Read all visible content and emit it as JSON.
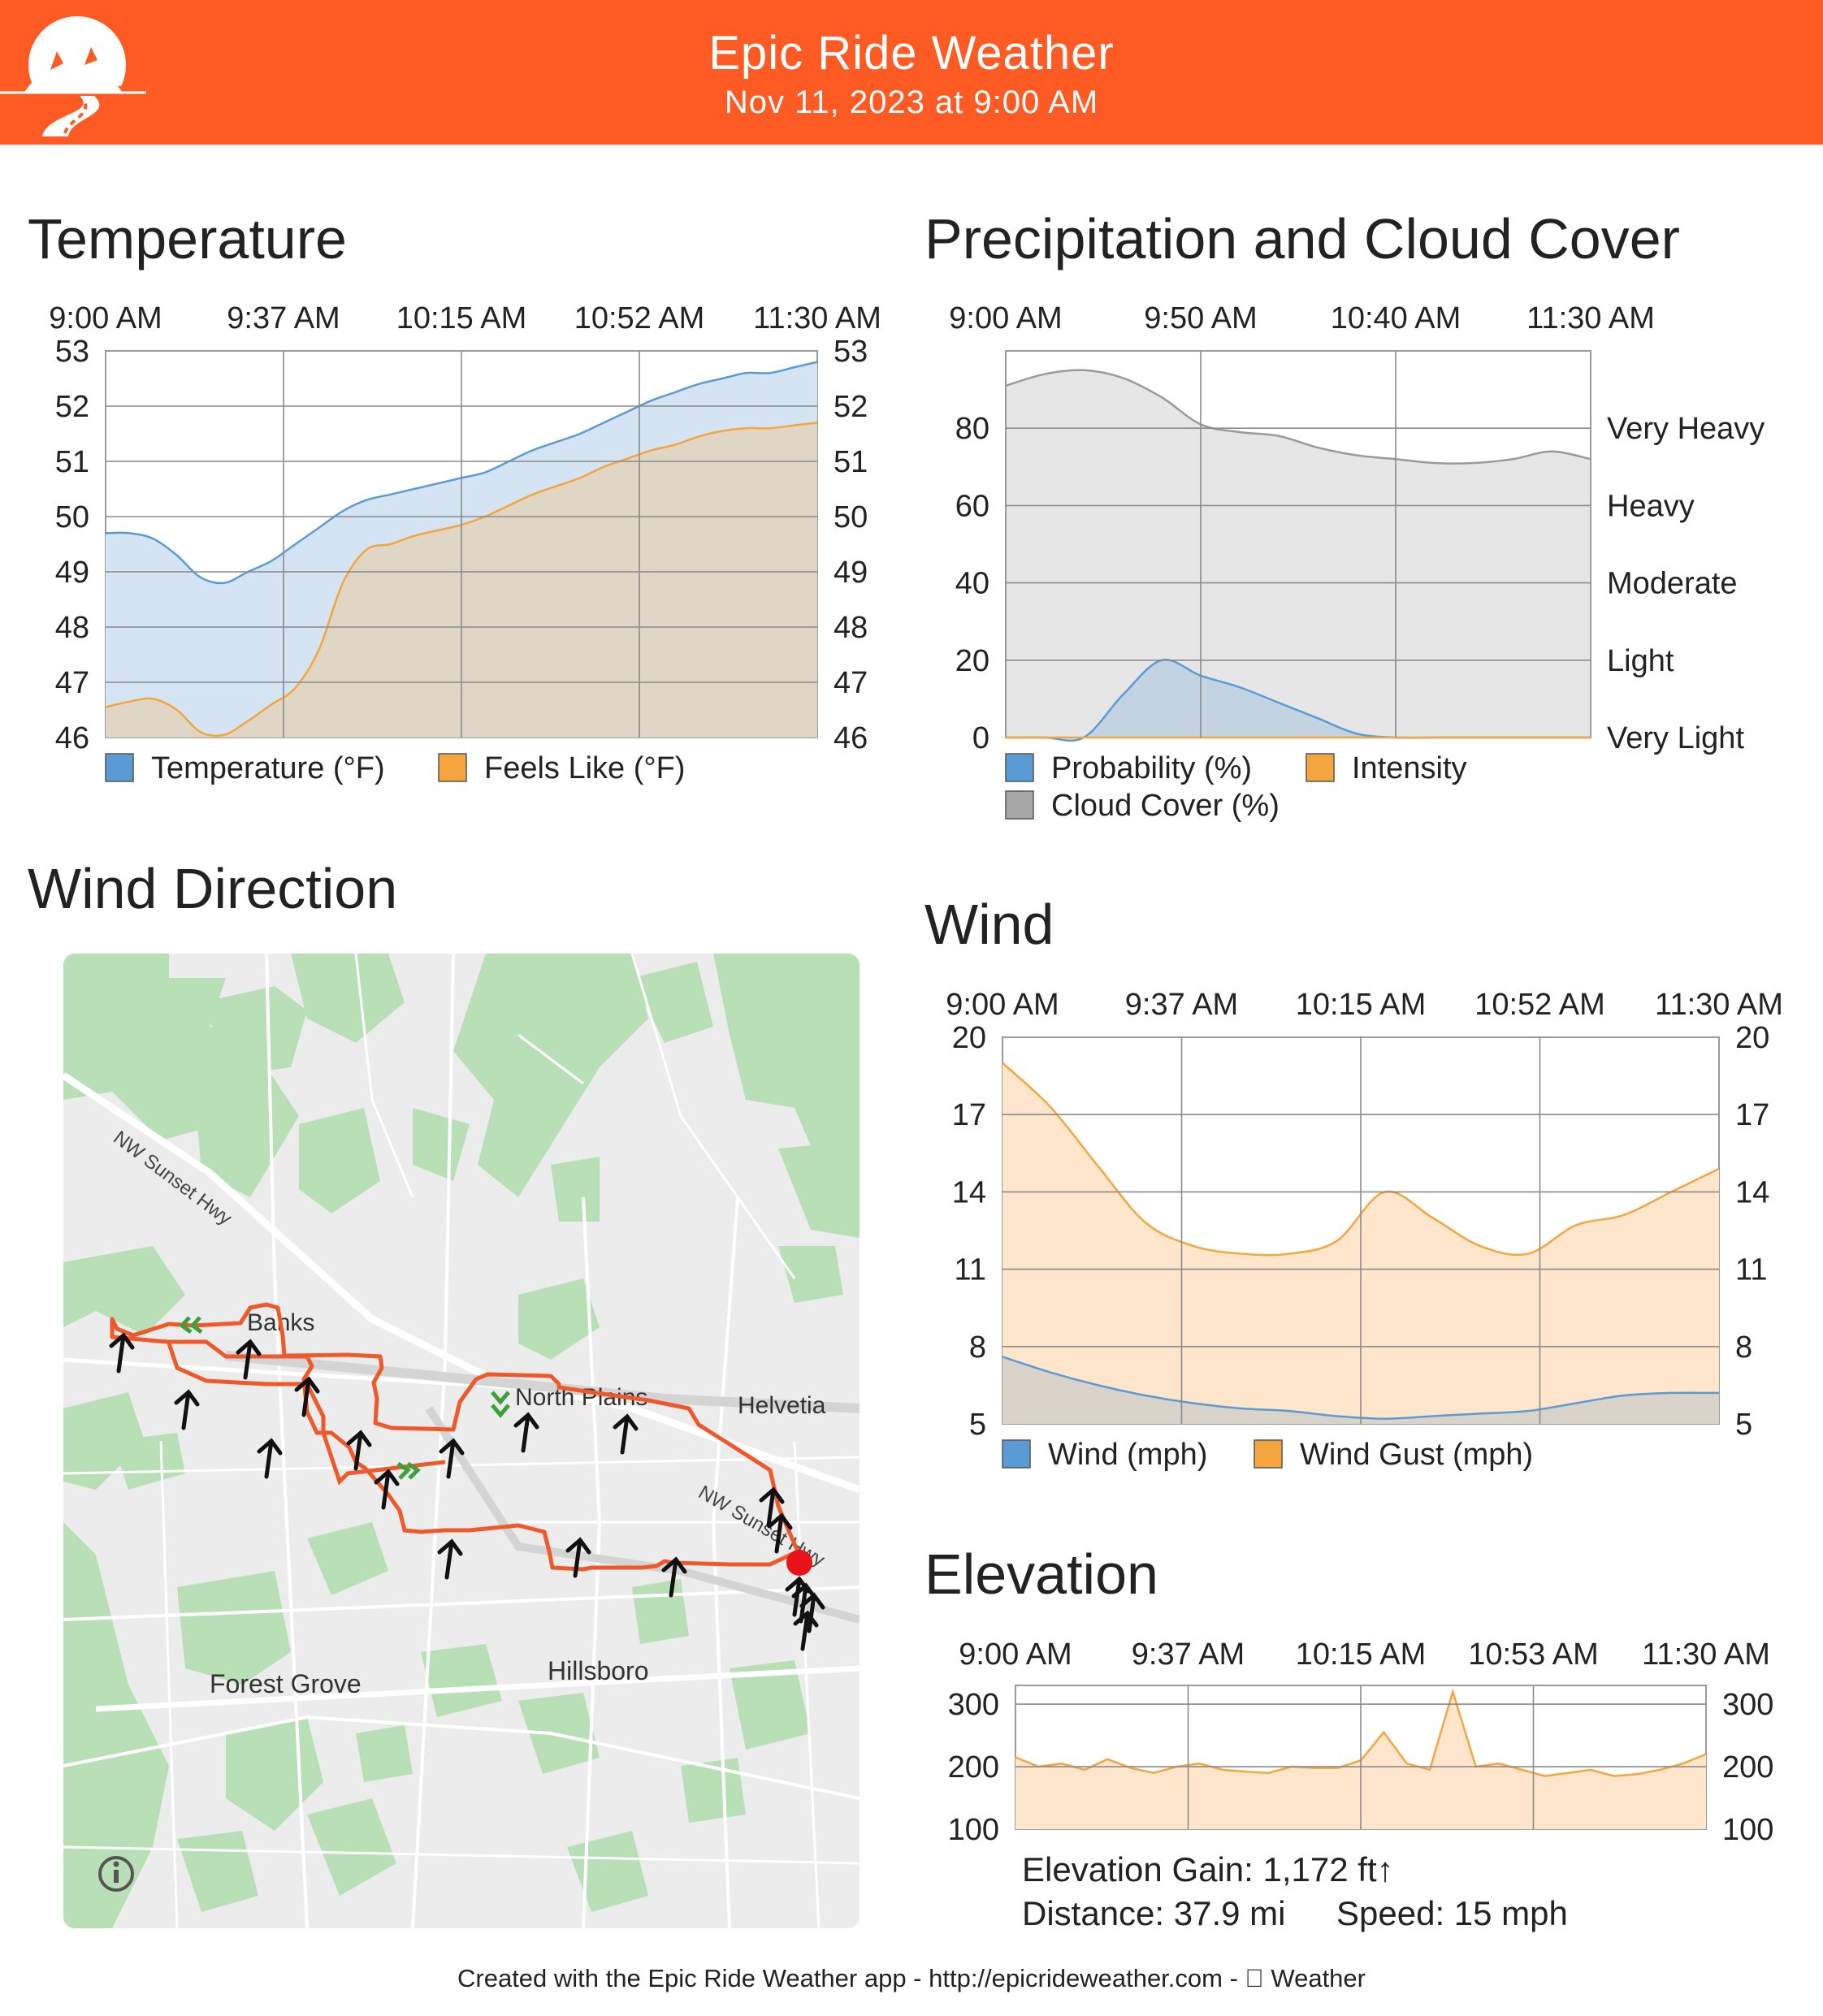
{
  "header": {
    "title": "Epic Ride Weather",
    "date": "Nov 11, 2023 at 9:00 AM",
    "background": "#fe5a24"
  },
  "sections": {
    "temperature": "Temperature",
    "precipitation": "Precipitation and Cloud Cover",
    "wind_direction": "Wind Direction",
    "wind": "Wind",
    "elevation": "Elevation"
  },
  "chart_data": [
    {
      "id": "temperature",
      "type": "area",
      "x_ticks": [
        "9:00 AM",
        "9:37 AM",
        "10:15 AM",
        "10:52 AM",
        "11:30 AM"
      ],
      "x": [
        0,
        5,
        10,
        15,
        20,
        25,
        30,
        35,
        40,
        45,
        50,
        55,
        60,
        65,
        70,
        75,
        80,
        85,
        90,
        95,
        100,
        105,
        110,
        115,
        120,
        125,
        130,
        135,
        140,
        145,
        150
      ],
      "ylim": [
        46,
        53
      ],
      "yticks": [
        46,
        47,
        48,
        49,
        50,
        51,
        52,
        53
      ],
      "grid": true,
      "legend_position": "bottom",
      "series": [
        {
          "name": "Temperature (°F)",
          "color": "#5b9bd5",
          "values": [
            49.7,
            49.7,
            49.6,
            49.3,
            48.9,
            48.8,
            49.0,
            49.2,
            49.5,
            49.8,
            50.1,
            50.3,
            50.4,
            50.5,
            50.6,
            50.7,
            50.8,
            51.0,
            51.2,
            51.35,
            51.5,
            51.7,
            51.9,
            52.1,
            52.25,
            52.4,
            52.5,
            52.6,
            52.6,
            52.7,
            52.8
          ]
        },
        {
          "name": "Feels Like (°F)",
          "color": "#f5a53d",
          "values": [
            46.55,
            46.65,
            46.7,
            46.5,
            46.1,
            46.05,
            46.3,
            46.6,
            46.9,
            47.6,
            48.8,
            49.4,
            49.5,
            49.65,
            49.75,
            49.85,
            50.0,
            50.2,
            50.4,
            50.55,
            50.7,
            50.9,
            51.05,
            51.2,
            51.3,
            51.45,
            51.55,
            51.6,
            51.6,
            51.65,
            51.7
          ]
        }
      ]
    },
    {
      "id": "precipitation",
      "type": "area",
      "x_ticks": [
        "9:00 AM",
        "9:50 AM",
        "10:40 AM",
        "11:30 AM"
      ],
      "x": [
        0,
        10,
        20,
        30,
        40,
        50,
        60,
        70,
        80,
        90,
        100,
        110,
        120,
        130,
        140,
        150
      ],
      "ylim": [
        0,
        100
      ],
      "yticks": [
        0,
        20,
        40,
        60,
        80
      ],
      "y2_labels": [
        "Very Light",
        "Light",
        "Moderate",
        "Heavy",
        "Very Heavy"
      ],
      "grid": true,
      "legend_position": "bottom",
      "series": [
        {
          "name": "Probability (%)",
          "color": "#5b9bd5",
          "values": [
            0,
            0,
            0,
            11,
            20,
            16,
            13,
            9,
            5,
            1,
            0,
            0,
            0,
            0,
            0,
            0
          ]
        },
        {
          "name": "Intensity",
          "color": "#f5a53d",
          "values": [
            0,
            0,
            0,
            0,
            0,
            0,
            0,
            0,
            0,
            0,
            0,
            0,
            0,
            0,
            0,
            0
          ]
        },
        {
          "name": "Cloud Cover (%)",
          "color": "#a6a6a6",
          "values": [
            91,
            94,
            95,
            93,
            88,
            81,
            79,
            78,
            75,
            73,
            72,
            71,
            71,
            72,
            74,
            72
          ]
        }
      ]
    },
    {
      "id": "wind",
      "type": "area",
      "x_ticks": [
        "9:00 AM",
        "9:37 AM",
        "10:15 AM",
        "10:52 AM",
        "11:30 AM"
      ],
      "x": [
        0,
        10,
        20,
        30,
        40,
        50,
        60,
        70,
        80,
        90,
        100,
        110,
        120,
        130,
        140,
        150
      ],
      "ylim": [
        5,
        20
      ],
      "yticks": [
        5,
        8,
        11,
        14,
        17,
        20
      ],
      "grid": true,
      "legend_position": "bottom",
      "series": [
        {
          "name": "Wind (mph)",
          "color": "#5b9bd5",
          "values": [
            7.6,
            7.0,
            6.5,
            6.1,
            5.8,
            5.6,
            5.5,
            5.3,
            5.2,
            5.3,
            5.4,
            5.5,
            5.8,
            6.1,
            6.2,
            6.2
          ]
        },
        {
          "name": "Wind Gust (mph)",
          "color": "#f5a53d",
          "values": [
            19.0,
            17.3,
            15.0,
            12.8,
            11.9,
            11.6,
            11.6,
            12.1,
            14.0,
            13.0,
            11.9,
            11.6,
            12.7,
            13.1,
            14.0,
            14.9
          ]
        }
      ]
    },
    {
      "id": "elevation",
      "type": "area",
      "x_ticks": [
        "9:00 AM",
        "9:37 AM",
        "10:15 AM",
        "10:53 AM",
        "11:30 AM"
      ],
      "x": [
        0,
        5,
        10,
        15,
        20,
        25,
        30,
        35,
        40,
        45,
        50,
        55,
        60,
        65,
        70,
        75,
        80,
        85,
        90,
        95,
        100,
        105,
        110,
        115,
        120,
        125,
        130,
        135,
        140,
        145,
        150
      ],
      "ylim": [
        100,
        330
      ],
      "yticks": [
        100,
        200,
        300
      ],
      "grid": true,
      "series": [
        {
          "name": "Elevation",
          "color": "#f5a53d",
          "values": [
            215,
            200,
            205,
            195,
            212,
            198,
            190,
            200,
            205,
            195,
            192,
            190,
            200,
            198,
            198,
            210,
            255,
            205,
            195,
            320,
            200,
            205,
            195,
            185,
            190,
            195,
            185,
            188,
            195,
            205,
            220
          ]
        }
      ],
      "stats": {
        "gain": "Elevation Gain: 1,172 ft↑",
        "distance": "Distance: 37.9 mi",
        "speed": "Speed: 15 mph"
      }
    }
  ],
  "map": {
    "labels": {
      "banks": "Banks",
      "north_plains": "North Plains",
      "helvetia": "Helvetia",
      "forest_grove": "Forest Grove",
      "hillsboro": "Hillsboro",
      "hwy1": "NW Sunset Hwy",
      "hwy2": "NW Sunset Hwy"
    },
    "route_color": "#f0582a",
    "wind_arrow_count": 19
  },
  "footer": "Created with the Epic Ride Weather app - http://epicrideweather.com -  Weather"
}
